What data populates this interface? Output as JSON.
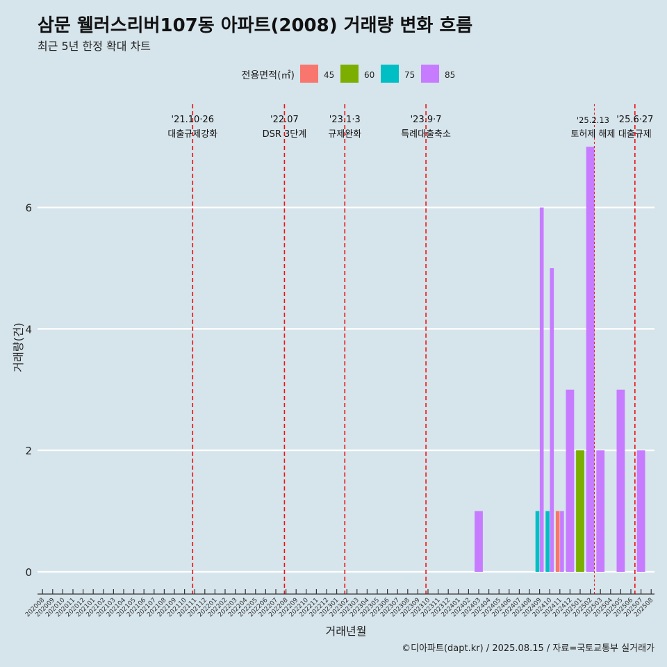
{
  "title": "삼문 웰러스리버107동 아파트(2008) 거래량 변화 흐름",
  "subtitle": "최근 5년 한정 확대 차트",
  "caption": "©디아파트(dapt.kr) / 2025.08.15 / 자료=국토교통부 실거래가",
  "chart_data": {
    "type": "bar",
    "xlabel": "거래년월",
    "ylabel": "거래량(건)",
    "ylim": [
      0,
      7
    ],
    "yticks": [
      0,
      2,
      4,
      6
    ],
    "grid": "horizontal",
    "legend": {
      "title": "전용면적(㎡)",
      "position": "top",
      "entries": [
        {
          "name": "45",
          "color": "#F8766D"
        },
        {
          "name": "60",
          "color": "#7CAE00"
        },
        {
          "name": "75",
          "color": "#00BFC4"
        },
        {
          "name": "85",
          "color": "#C77CFF"
        }
      ]
    },
    "categories": [
      "202008",
      "202009",
      "202010",
      "202011",
      "202012",
      "202101",
      "202102",
      "202103",
      "202104",
      "202105",
      "202106",
      "202107",
      "202108",
      "202109",
      "202110",
      "202111",
      "202112",
      "202201",
      "202202",
      "202203",
      "202204",
      "202205",
      "202206",
      "202207",
      "202208",
      "202209",
      "202210",
      "202211",
      "202212",
      "202301",
      "202302",
      "202303",
      "202304",
      "202305",
      "202306",
      "202307",
      "202308",
      "202309",
      "202310",
      "202311",
      "202312",
      "202401",
      "202402",
      "202403",
      "202404",
      "202405",
      "202406",
      "202407",
      "202408",
      "202409",
      "202410",
      "202411",
      "202412",
      "202501",
      "202502",
      "202503",
      "202504",
      "202505",
      "202506",
      "202507",
      "202508"
    ],
    "bars": [
      {
        "month": "202403",
        "area": "85",
        "value": 1
      },
      {
        "month": "202409",
        "area": "75",
        "value": 1
      },
      {
        "month": "202409",
        "area": "85",
        "value": 6
      },
      {
        "month": "202410",
        "area": "75",
        "value": 1
      },
      {
        "month": "202410",
        "area": "85",
        "value": 5
      },
      {
        "month": "202411",
        "area": "45",
        "value": 1
      },
      {
        "month": "202411",
        "area": "85",
        "value": 1
      },
      {
        "month": "202412",
        "area": "85",
        "value": 3
      },
      {
        "month": "202501",
        "area": "60",
        "value": 2
      },
      {
        "month": "202502",
        "area": "85",
        "value": 7
      },
      {
        "month": "202503",
        "area": "85",
        "value": 2
      },
      {
        "month": "202505",
        "area": "85",
        "value": 3
      },
      {
        "month": "202507",
        "area": "85",
        "value": 2
      }
    ],
    "annotations": [
      {
        "x": 14.8,
        "date": "'21.10·26",
        "label": "대출규제강화",
        "style": "dashed"
      },
      {
        "x": 23.85,
        "date": "'22.07",
        "label": "DSR 3단계",
        "style": "dashed"
      },
      {
        "x": 29.8,
        "date": "'23.1·3",
        "label": "규제완화",
        "style": "dashed"
      },
      {
        "x": 37.8,
        "date": "'23.9·7",
        "label": "특례대출축소",
        "style": "dashed"
      },
      {
        "x": 54.4,
        "date": "'25.2.13",
        "label": "토허제 해제",
        "style": "dotted"
      },
      {
        "x": 58.4,
        "date": "'25.6·27",
        "label": "대출규제",
        "style": "dashed"
      }
    ]
  }
}
